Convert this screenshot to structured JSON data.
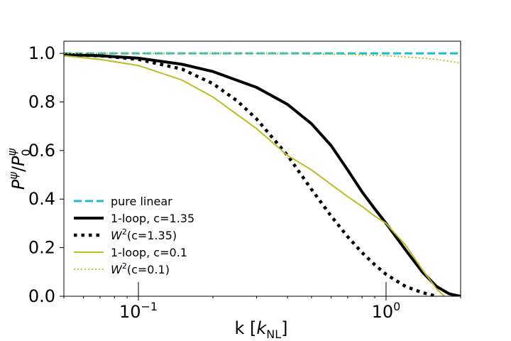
{
  "chart_data": {
    "type": "line",
    "title": "",
    "xlabel": "k [k_NL]",
    "ylabel": "P^ψ / P_0^ψ",
    "xscale": "log",
    "xlim": [
      0.05,
      2.0
    ],
    "ylim": [
      0.0,
      1.05
    ],
    "x_major_ticks": [
      {
        "value": 0.1,
        "base": "10",
        "exp": "−1"
      },
      {
        "value": 1.0,
        "base": "10",
        "exp": "0"
      }
    ],
    "y_ticks": [
      0.0,
      0.2,
      0.4,
      0.6,
      0.8,
      1.0
    ],
    "y_tick_labels": [
      "0.0",
      "0.2",
      "0.4",
      "0.6",
      "0.8",
      "1.0"
    ],
    "legend_position": "lower-left",
    "series": [
      {
        "name": "pure linear",
        "label_main": "pure linear",
        "color": "#17becf",
        "style": "dashed",
        "x": [
          0.05,
          0.1,
          0.3,
          1.0,
          2.0
        ],
        "y": [
          1.0,
          1.0,
          1.0,
          1.0,
          1.0
        ]
      },
      {
        "name": "1-loop, c=1.35",
        "label_main": "1-loop, c=1.35",
        "color": "#000000",
        "style": "thick-solid",
        "x": [
          0.05,
          0.07,
          0.1,
          0.15,
          0.2,
          0.3,
          0.4,
          0.5,
          0.6,
          0.7,
          0.8,
          0.9,
          1.0,
          1.2,
          1.4,
          1.6,
          1.8,
          2.0
        ],
        "y": [
          0.995,
          0.99,
          0.98,
          0.955,
          0.925,
          0.86,
          0.79,
          0.71,
          0.62,
          0.52,
          0.43,
          0.36,
          0.3,
          0.19,
          0.1,
          0.04,
          0.01,
          0.0
        ]
      },
      {
        "name": "W²(c=1.35)",
        "label_main": "W",
        "label_sup": "2",
        "label_rest": "(c=1.35)",
        "color": "#000000",
        "style": "dotted",
        "x": [
          0.05,
          0.07,
          0.1,
          0.15,
          0.2,
          0.25,
          0.3,
          0.4,
          0.5,
          0.6,
          0.7,
          0.8,
          0.9,
          1.0,
          1.2,
          1.4,
          1.6
        ],
        "y": [
          0.995,
          0.99,
          0.975,
          0.935,
          0.875,
          0.805,
          0.73,
          0.58,
          0.44,
          0.33,
          0.245,
          0.18,
          0.13,
          0.09,
          0.04,
          0.015,
          0.0
        ]
      },
      {
        "name": "1-loop, c=0.1",
        "label_main": "1-loop, c=0.1",
        "color": "#bcbd22",
        "style": "solid",
        "x": [
          0.05,
          0.07,
          0.1,
          0.15,
          0.2,
          0.3,
          0.4,
          0.5,
          0.6,
          0.7,
          0.8,
          0.9,
          1.0,
          1.2,
          1.4,
          1.6,
          1.72
        ],
        "y": [
          0.99,
          0.975,
          0.95,
          0.89,
          0.82,
          0.69,
          0.58,
          0.52,
          0.46,
          0.41,
          0.37,
          0.33,
          0.3,
          0.21,
          0.11,
          0.03,
          0.0
        ]
      },
      {
        "name": "W²(c=0.1)",
        "label_main": "W",
        "label_sup": "2",
        "label_rest": "(c=0.1)",
        "color": "#bcbd22",
        "style": "fine-dotted",
        "x": [
          0.05,
          0.1,
          0.2,
          0.4,
          0.7,
          1.0,
          1.3,
          1.6,
          2.0
        ],
        "y": [
          1.0,
          1.0,
          1.0,
          0.999,
          0.996,
          0.99,
          0.983,
          0.975,
          0.96
        ]
      }
    ]
  }
}
